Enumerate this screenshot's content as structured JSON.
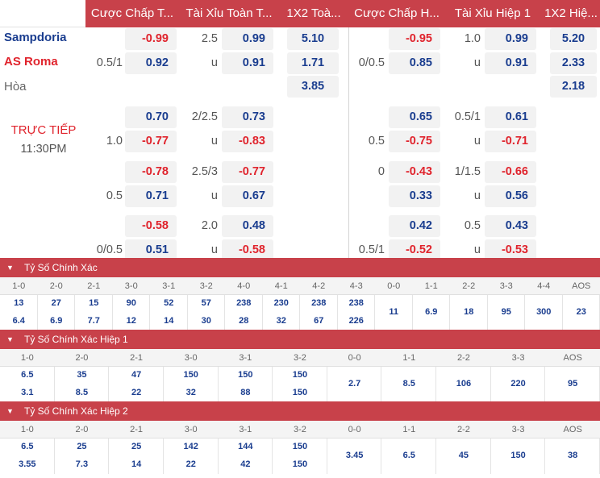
{
  "header": {
    "col_handicap_ft": "Cược Chấp T...",
    "col_ou_ft": "Tài Xỉu Toàn T...",
    "col_1x2_ft": "1X2 Toà...",
    "col_handicap_h1": "Cược Chấp H...",
    "col_ou_h1": "Tài Xỉu Hiệp 1",
    "col_1x2_h1": "1X2 Hiệ..."
  },
  "match": {
    "home": "Sampdoria",
    "away": "AS Roma",
    "draw": "Hòa",
    "live_label": "TRỰC TIẾP",
    "time": "11:30PM"
  },
  "colors": {
    "header_bg": "#c8414a",
    "odds_blue": "#1a3d8f",
    "odds_red": "#e0242d"
  },
  "odds_rows": [
    {
      "ft_hcap": "",
      "ft_hodds": "-0.99",
      "ft_ouline": "2.5",
      "ft_ouodds": "0.99",
      "ft_1x2": "5.10",
      "h1_hcap": "",
      "h1_hodds": "-0.95",
      "h1_ouline": "1.0",
      "h1_ouodds": "0.99",
      "h1_1x2": "5.20"
    },
    {
      "ft_hcap": "0.5/1",
      "ft_hodds": "0.92",
      "ft_ouline": "u",
      "ft_ouodds": "0.91",
      "ft_1x2": "1.71",
      "h1_hcap": "0/0.5",
      "h1_hodds": "0.85",
      "h1_ouline": "u",
      "h1_ouodds": "0.91",
      "h1_1x2": "2.33"
    },
    {
      "ft_hcap": "",
      "ft_hodds": "",
      "ft_ouline": "",
      "ft_ouodds": "",
      "ft_1x2": "3.85",
      "h1_hcap": "",
      "h1_hodds": "",
      "h1_ouline": "",
      "h1_ouodds": "",
      "h1_1x2": "2.18"
    },
    {
      "ft_hcap": "",
      "ft_hodds": "0.70",
      "ft_ouline": "2/2.5",
      "ft_ouodds": "0.73",
      "ft_1x2": "",
      "h1_hcap": "",
      "h1_hodds": "0.65",
      "h1_ouline": "0.5/1",
      "h1_ouodds": "0.61",
      "h1_1x2": ""
    },
    {
      "ft_hcap": "1.0",
      "ft_hodds": "-0.77",
      "ft_ouline": "u",
      "ft_ouodds": "-0.83",
      "ft_1x2": "",
      "h1_hcap": "0.5",
      "h1_hodds": "-0.75",
      "h1_ouline": "u",
      "h1_ouodds": "-0.71",
      "h1_1x2": ""
    },
    {
      "ft_hcap": "",
      "ft_hodds": "-0.78",
      "ft_ouline": "2.5/3",
      "ft_ouodds": "-0.77",
      "ft_1x2": "",
      "h1_hcap": "0",
      "h1_hodds": "-0.43",
      "h1_ouline": "1/1.5",
      "h1_ouodds": "-0.66",
      "h1_1x2": ""
    },
    {
      "ft_hcap": "0.5",
      "ft_hodds": "0.71",
      "ft_ouline": "u",
      "ft_ouodds": "0.67",
      "ft_1x2": "",
      "h1_hcap": "",
      "h1_hodds": "0.33",
      "h1_ouline": "u",
      "h1_ouodds": "0.56",
      "h1_1x2": ""
    },
    {
      "ft_hcap": "",
      "ft_hodds": "-0.58",
      "ft_ouline": "2.0",
      "ft_ouodds": "0.48",
      "ft_1x2": "",
      "h1_hcap": "",
      "h1_hodds": "0.42",
      "h1_ouline": "0.5",
      "h1_ouodds": "0.43",
      "h1_1x2": ""
    },
    {
      "ft_hcap": "0/0.5",
      "ft_hodds": "0.51",
      "ft_ouline": "u",
      "ft_ouodds": "-0.58",
      "ft_1x2": "",
      "h1_hcap": "0.5/1",
      "h1_hodds": "-0.52",
      "h1_ouline": "u",
      "h1_ouodds": "-0.53",
      "h1_1x2": ""
    }
  ],
  "score_sections": [
    {
      "title": "Tỷ Số Chính Xác",
      "scores": [
        "1-0",
        "2-0",
        "2-1",
        "3-0",
        "3-1",
        "3-2",
        "4-0",
        "4-1",
        "4-2",
        "4-3",
        "0-0",
        "1-1",
        "2-2",
        "3-3",
        "4-4",
        "AOS"
      ],
      "top": [
        "13",
        "27",
        "15",
        "90",
        "52",
        "57",
        "238",
        "230",
        "238",
        "238",
        "11",
        "6.9",
        "18",
        "95",
        "300",
        "23"
      ],
      "bottom": [
        "6.4",
        "6.9",
        "7.7",
        "12",
        "14",
        "30",
        "28",
        "32",
        "67",
        "226",
        "",
        "",
        "",
        "",
        "",
        ""
      ]
    },
    {
      "title": "Tỷ Số Chính Xác Hiệp 1",
      "scores": [
        "1-0",
        "2-0",
        "2-1",
        "3-0",
        "3-1",
        "3-2",
        "0-0",
        "1-1",
        "2-2",
        "3-3",
        "AOS"
      ],
      "top": [
        "6.5",
        "35",
        "47",
        "150",
        "150",
        "150",
        "2.7",
        "8.5",
        "106",
        "220",
        "95"
      ],
      "bottom": [
        "3.1",
        "8.5",
        "22",
        "32",
        "88",
        "150",
        "",
        "",
        "",
        "",
        ""
      ]
    },
    {
      "title": "Tỷ Số Chính Xác Hiệp 2",
      "scores": [
        "1-0",
        "2-0",
        "2-1",
        "3-0",
        "3-1",
        "3-2",
        "0-0",
        "1-1",
        "2-2",
        "3-3",
        "AOS"
      ],
      "top": [
        "6.5",
        "25",
        "25",
        "142",
        "144",
        "150",
        "3.45",
        "6.5",
        "45",
        "150",
        "38"
      ],
      "bottom": [
        "3.55",
        "7.3",
        "14",
        "22",
        "42",
        "150",
        "",
        "",
        "",
        "",
        ""
      ]
    }
  ]
}
